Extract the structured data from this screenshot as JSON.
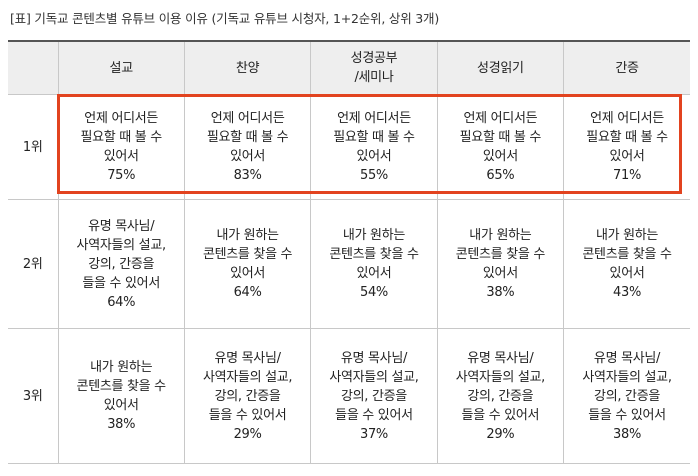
{
  "title": "[표] 기독교 콘텐츠별 유튜브 이용 이유 (기독교 유튜브 시청자, 1+2순위, 상위 3개)",
  "header": {
    "corner": "",
    "columns": [
      "설교",
      "찬양",
      "성경공부\n/세미나",
      "성경읽기",
      "간증"
    ]
  },
  "rows": [
    {
      "rank": "1위",
      "cells": [
        {
          "text": "언제 어디서든\n필요할 때 볼 수\n있어서",
          "pct": "75%"
        },
        {
          "text": "언제 어디서든\n필요할 때 볼 수\n있어서",
          "pct": "83%"
        },
        {
          "text": "언제 어디서든\n필요할 때 볼 수\n있어서",
          "pct": "55%"
        },
        {
          "text": "언제 어디서든\n필요할 때 볼 수\n있어서",
          "pct": "65%"
        },
        {
          "text": "언제 어디서든\n필요할 때 볼 수\n있어서",
          "pct": "71%"
        }
      ]
    },
    {
      "rank": "2위",
      "cells": [
        {
          "text": "유명 목사님/\n사역자들의 설교,\n강의, 간증을\n들을 수 있어서",
          "pct": "64%"
        },
        {
          "text": "내가 원하는\n콘텐츠를 찾을 수\n있어서",
          "pct": "64%"
        },
        {
          "text": "내가 원하는\n콘텐츠를 찾을 수\n있어서",
          "pct": "54%"
        },
        {
          "text": "내가 원하는\n콘텐츠를 찾을 수\n있어서",
          "pct": "38%"
        },
        {
          "text": "내가 원하는\n콘텐츠를 찾을 수\n있어서",
          "pct": "43%"
        }
      ]
    },
    {
      "rank": "3위",
      "cells": [
        {
          "text": "내가 원하는\n콘텐츠를 찾을 수\n있어서",
          "pct": "38%"
        },
        {
          "text": "유명 목사님/\n사역자들의 설교,\n강의, 간증을\n들을 수 있어서",
          "pct": "29%"
        },
        {
          "text": "유명 목사님/\n사역자들의 설교,\n강의, 간증을\n들을 수 있어서",
          "pct": "37%"
        },
        {
          "text": "유명 목사님/\n사역자들의 설교,\n강의, 간증을\n들을 수 있어서",
          "pct": "29%"
        },
        {
          "text": "유명 목사님/\n사역자들의 설교,\n강의, 간증을\n들을 수 있어서",
          "pct": "38%"
        }
      ]
    }
  ],
  "colors": {
    "highlight_border": "#e2431f",
    "header_bg": "#eeeeee",
    "grid_line": "#c8c8c8"
  }
}
